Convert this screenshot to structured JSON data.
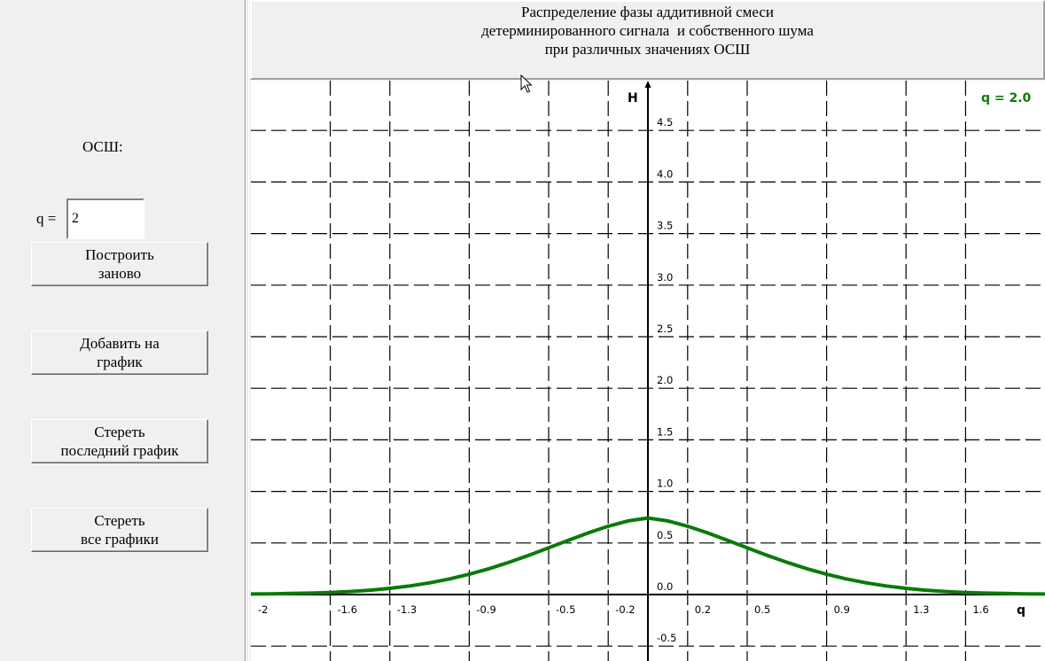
{
  "title": {
    "lines": [
      "Распределение фазы аддитивной смеси",
      "детерминированного сигнала  и собственного шума",
      "при различных значениях ОСШ"
    ]
  },
  "controls": {
    "osh_label": "ОСШ:",
    "q_label": "q =",
    "q_value": "2",
    "buttons": {
      "rebuild": "Построить\n заново",
      "add": "Добавить на\n график",
      "erase_last": "Стереть\nпоследний график",
      "erase_all": "Стереть\n все графики"
    }
  },
  "chart_data": {
    "type": "line",
    "xlabel": "q",
    "ylabel": "H",
    "xlim": [
      -2.0,
      2.0
    ],
    "ylim": [
      -0.6,
      4.9
    ],
    "x_ticks": [
      "-2",
      "-1.6",
      "-1.3",
      "-0.9",
      "-0.5",
      "-0.2",
      "0.2",
      "0.5",
      "0.9",
      "1.3",
      "1.6",
      "q"
    ],
    "x_tick_values": [
      -2.0,
      -1.6,
      -1.3,
      -0.9,
      -0.5,
      -0.2,
      0.2,
      0.5,
      0.9,
      1.3,
      1.6
    ],
    "y_ticks": [
      "-0.5",
      "0.0",
      "0.5",
      "1.0",
      "1.5",
      "2.0",
      "2.5",
      "3.0",
      "3.5",
      "4.0",
      "4.5"
    ],
    "y_tick_values": [
      -0.5,
      0.0,
      0.5,
      1.0,
      1.5,
      2.0,
      2.5,
      3.0,
      3.5,
      4.0,
      4.5
    ],
    "grid": true,
    "series": [
      {
        "name": "q = 2.0",
        "color": "#0a7a0a",
        "x": [
          -2.0,
          -1.9,
          -1.8,
          -1.7,
          -1.6,
          -1.5,
          -1.4,
          -1.3,
          -1.2,
          -1.1,
          -1.0,
          -0.9,
          -0.8,
          -0.7,
          -0.6,
          -0.5,
          -0.4,
          -0.3,
          -0.2,
          -0.1,
          0.0,
          0.1,
          0.2,
          0.3,
          0.4,
          0.5,
          0.6,
          0.7,
          0.8,
          0.9,
          1.0,
          1.1,
          1.2,
          1.3,
          1.4,
          1.5,
          1.6,
          1.7,
          1.8,
          1.9,
          2.0
        ],
        "y": [
          0.005,
          0.007,
          0.01,
          0.014,
          0.02,
          0.029,
          0.042,
          0.06,
          0.083,
          0.113,
          0.151,
          0.197,
          0.251,
          0.313,
          0.381,
          0.453,
          0.527,
          0.598,
          0.662,
          0.714,
          0.742,
          0.714,
          0.662,
          0.598,
          0.527,
          0.453,
          0.381,
          0.313,
          0.251,
          0.197,
          0.151,
          0.113,
          0.083,
          0.06,
          0.042,
          0.029,
          0.02,
          0.014,
          0.01,
          0.007,
          0.005
        ]
      }
    ]
  }
}
